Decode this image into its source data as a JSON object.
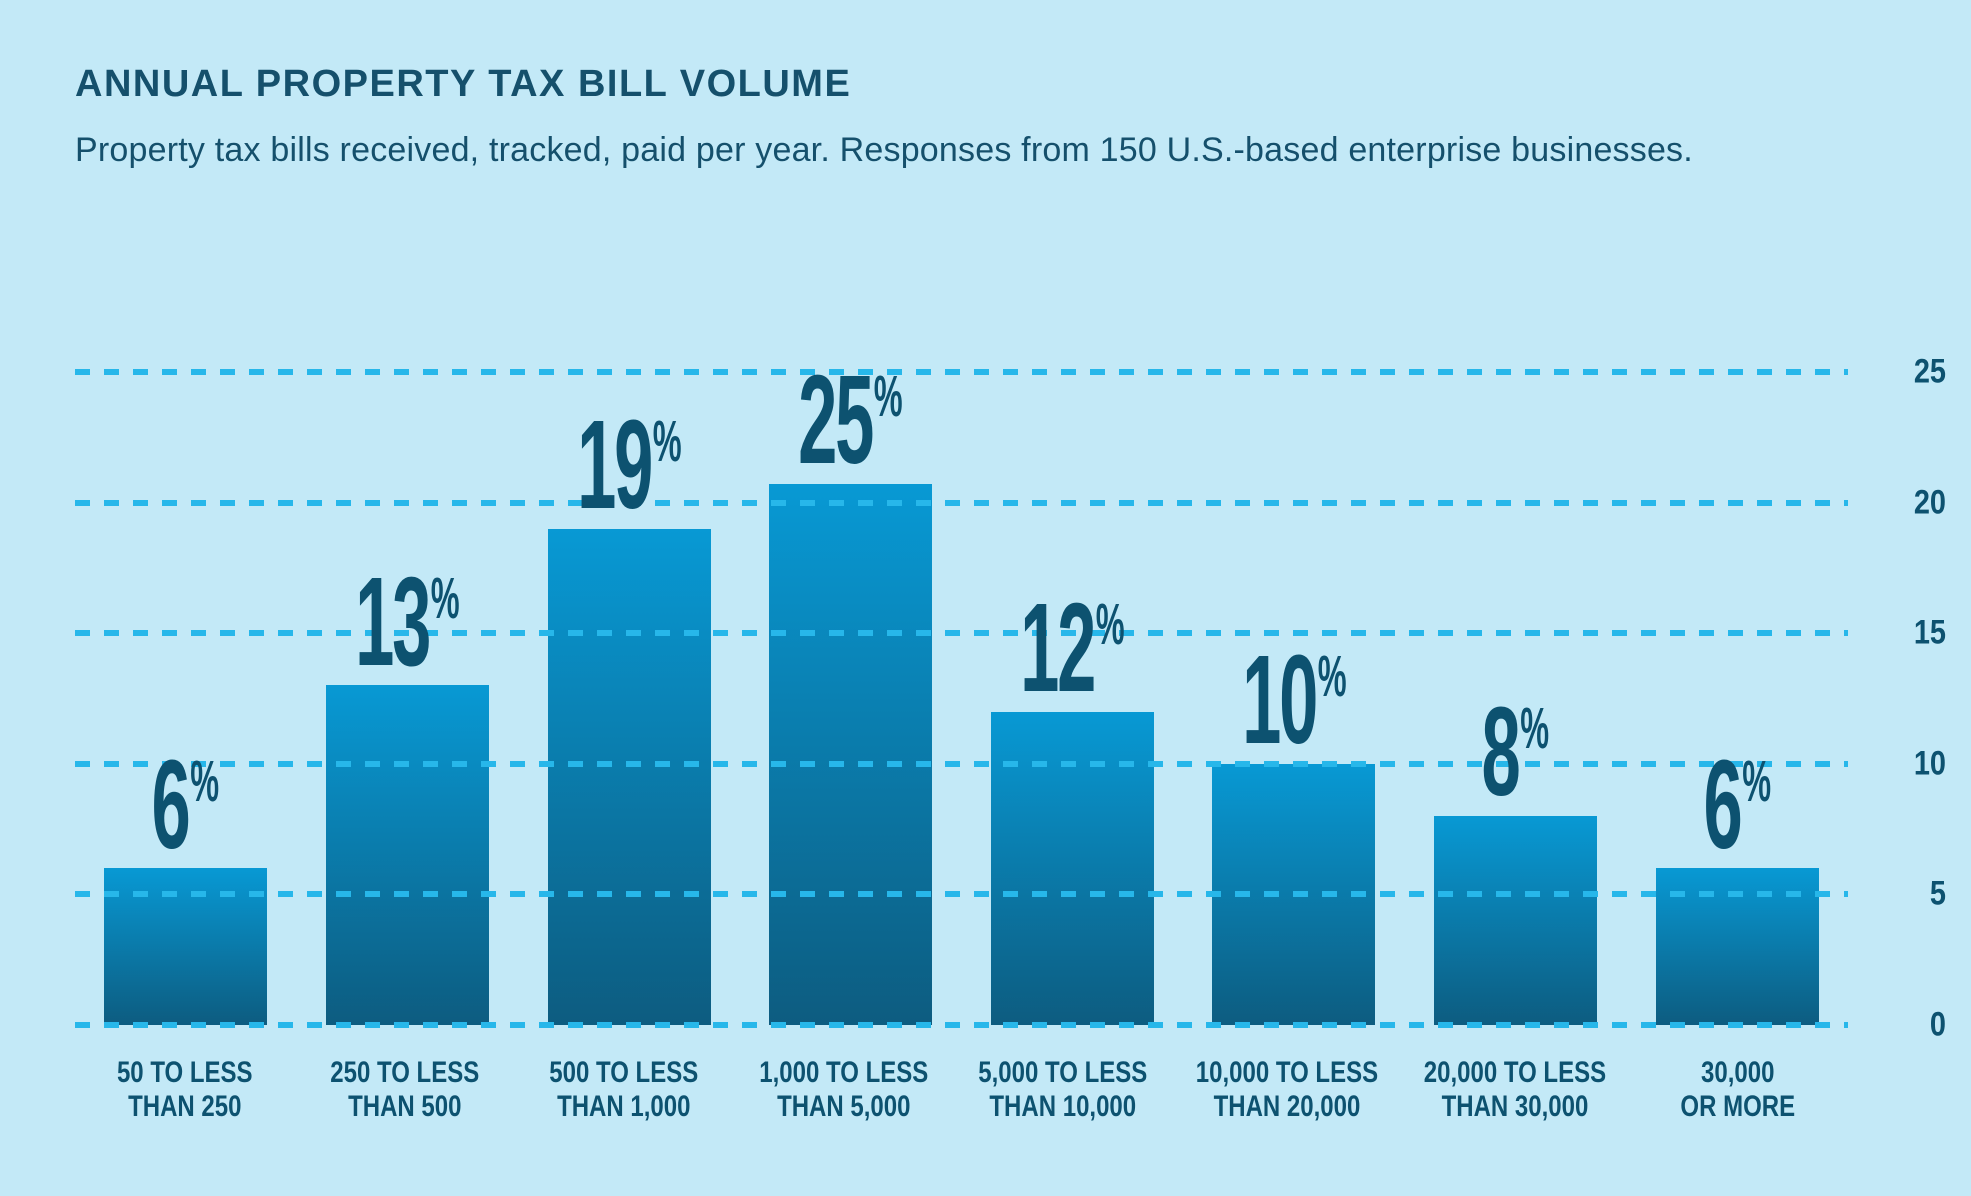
{
  "header": {
    "title": "ANNUAL PROPERTY TAX BILL VOLUME",
    "subtitle": "Property tax bills received, tracked, paid per year. Responses from 150 U.S.-based enterprise businesses."
  },
  "chart_data": {
    "type": "bar",
    "title": "ANNUAL PROPERTY TAX BILL VOLUME",
    "subtitle": "Property tax bills received, tracked, paid per year. Responses from 150 U.S.-based enterprise businesses.",
    "unit": "%",
    "categories": [
      "50 TO LESS THAN 250",
      "250 TO LESS THAN 500",
      "500 TO LESS THAN 1,000",
      "1,000 TO LESS THAN 5,000",
      "5,000 TO LESS THAN 10,000",
      "10,000 TO LESS THAN 20,000",
      "20,000 TO LESS THAN 30,000",
      "30,000 OR MORE"
    ],
    "category_lines": [
      [
        "50 TO LESS",
        "THAN 250"
      ],
      [
        "250 TO LESS",
        "THAN 500"
      ],
      [
        "500 TO LESS",
        "THAN 1,000"
      ],
      [
        "1,000 TO LESS",
        "THAN 5,000"
      ],
      [
        "5,000 TO LESS",
        "THAN 10,000"
      ],
      [
        "10,000 TO LESS",
        "THAN 20,000"
      ],
      [
        "20,000 TO LESS",
        "THAN 30,000"
      ],
      [
        "30,000",
        "OR MORE"
      ]
    ],
    "values": [
      6,
      13,
      19,
      25,
      12,
      10,
      8,
      6
    ],
    "value_labels": [
      "6",
      "13",
      "19",
      "25",
      "12",
      "10",
      "8",
      "6"
    ],
    "percent_sign": "%",
    "ylim": [
      0,
      25
    ],
    "yticks": [
      0,
      5,
      10,
      15,
      20,
      25
    ],
    "ytick_labels": [
      "0",
      "5",
      "10",
      "15",
      "20",
      "25"
    ],
    "grid": "horizontal-dashed",
    "legend": "none",
    "xlabel": "",
    "ylabel": ""
  },
  "colors": {
    "background": "#c3e9f7",
    "bar_gradient_top": "#0899d4",
    "bar_gradient_bottom": "#0d5c80",
    "gridline": "#27b7ea",
    "heading_text": "#15506c",
    "label_text": "#0d5270"
  }
}
